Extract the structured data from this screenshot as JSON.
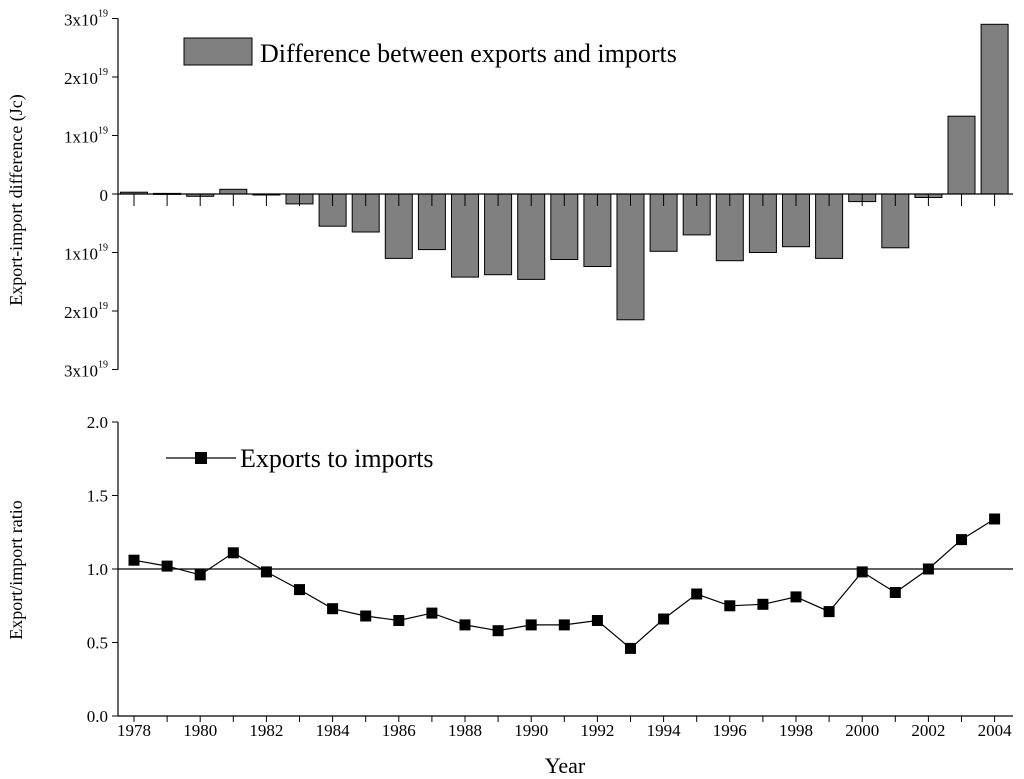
{
  "chart_data": [
    {
      "type": "bar",
      "id": "difference",
      "title": "",
      "ylabel": "Export-import difference (Jc)",
      "xlabel": "",
      "ylim": [
        -3,
        3
      ],
      "y_scale_note": "values in units of 1x10^19 Jc",
      "yticks": [
        {
          "value": 3,
          "mantissa": "3x10",
          "exponent": "19"
        },
        {
          "value": 2,
          "mantissa": "2x10",
          "exponent": "19"
        },
        {
          "value": 1,
          "mantissa": "1x10",
          "exponent": "19"
        },
        {
          "value": 0,
          "mantissa": "0",
          "exponent": ""
        },
        {
          "value": -1,
          "mantissa": "1x10",
          "exponent": "19"
        },
        {
          "value": -2,
          "mantissa": "2x10",
          "exponent": "19"
        },
        {
          "value": -3,
          "mantissa": "3x10",
          "exponent": "19"
        }
      ],
      "legend": {
        "label": "Difference between exports and imports",
        "position": "top-left",
        "color": "#808080"
      },
      "bar_color": "#808080",
      "categories": [
        1978,
        1979,
        1980,
        1981,
        1982,
        1983,
        1984,
        1985,
        1986,
        1987,
        1988,
        1989,
        1990,
        1991,
        1992,
        1993,
        1994,
        1995,
        1996,
        1997,
        1998,
        1999,
        2000,
        2001,
        2002,
        2003,
        2004
      ],
      "values": [
        0.03,
        0.01,
        -0.04,
        0.08,
        -0.01,
        -0.17,
        -0.55,
        -0.65,
        -1.1,
        -0.95,
        -1.42,
        -1.38,
        -1.46,
        -1.12,
        -1.24,
        -2.15,
        -0.98,
        -0.7,
        -1.14,
        -1.0,
        -0.9,
        -1.1,
        -0.13,
        -0.92,
        -0.06,
        1.33,
        2.9
      ]
    },
    {
      "type": "line",
      "id": "ratio",
      "title": "",
      "ylabel": "Export/import ratio",
      "xlabel": "Year",
      "ylim": [
        0.0,
        2.0
      ],
      "yticks": [
        "0.0",
        "0.5",
        "1.0",
        "1.5",
        "2.0"
      ],
      "reference_line": 1.0,
      "legend": {
        "label": "Exports to imports",
        "position": "top-left",
        "marker": "square"
      },
      "x": [
        1978,
        1979,
        1980,
        1981,
        1982,
        1983,
        1984,
        1985,
        1986,
        1987,
        1988,
        1989,
        1990,
        1991,
        1992,
        1993,
        1994,
        1995,
        1996,
        1997,
        1998,
        1999,
        2000,
        2001,
        2002,
        2003,
        2004
      ],
      "values": [
        1.06,
        1.02,
        0.96,
        1.11,
        0.98,
        0.86,
        0.73,
        0.68,
        0.65,
        0.7,
        0.62,
        0.58,
        0.62,
        0.62,
        0.65,
        0.46,
        0.66,
        0.83,
        0.75,
        0.76,
        0.81,
        0.71,
        0.98,
        0.84,
        1.0,
        1.2,
        1.34
      ],
      "xticks": [
        "1978",
        "1980",
        "1982",
        "1984",
        "1986",
        "1988",
        "1990",
        "1992",
        "1994",
        "1996",
        "1998",
        "2000",
        "2002",
        "2004"
      ]
    }
  ]
}
